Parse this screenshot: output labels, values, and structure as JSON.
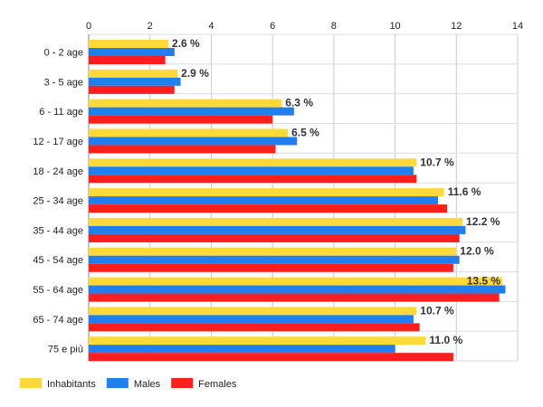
{
  "chart_data": {
    "type": "bar",
    "orientation": "horizontal",
    "categories": [
      "0 - 2 age",
      "3 - 5 age",
      "6 - 11 age",
      "12 - 17 age",
      "18 - 24 age",
      "25 - 34 age",
      "35 - 44 age",
      "45 - 54 age",
      "55 - 64 age",
      "65 - 74 age",
      "75 e più"
    ],
    "series": [
      {
        "name": "Inhabitants",
        "color": "#FFD93A",
        "values": [
          2.6,
          2.9,
          6.3,
          6.5,
          10.7,
          11.6,
          12.2,
          12.0,
          13.5,
          10.7,
          11.0
        ]
      },
      {
        "name": "Males",
        "color": "#1F7FEF",
        "values": [
          2.8,
          3.0,
          6.7,
          6.8,
          10.6,
          11.4,
          12.3,
          12.1,
          13.6,
          10.6,
          10.0
        ]
      },
      {
        "name": "Females",
        "color": "#FF1E1E",
        "values": [
          2.5,
          2.8,
          6.0,
          6.1,
          10.7,
          11.7,
          12.1,
          11.9,
          13.4,
          10.8,
          11.9
        ]
      }
    ],
    "data_labels": [
      "2.6 %",
      "2.9 %",
      "6.3 %",
      "6.5 %",
      "10.7 %",
      "11.6 %",
      "12.2 %",
      "12.0 %",
      "13.5 %",
      "10.7 %",
      "11.0 %"
    ],
    "xlim": [
      0,
      14
    ],
    "x_ticks": [
      0,
      2,
      4,
      6,
      8,
      10,
      12,
      14
    ],
    "x_axis_position": "top",
    "grid": true,
    "legend_position": "bottom-left",
    "title": "",
    "xlabel": "",
    "ylabel": ""
  }
}
